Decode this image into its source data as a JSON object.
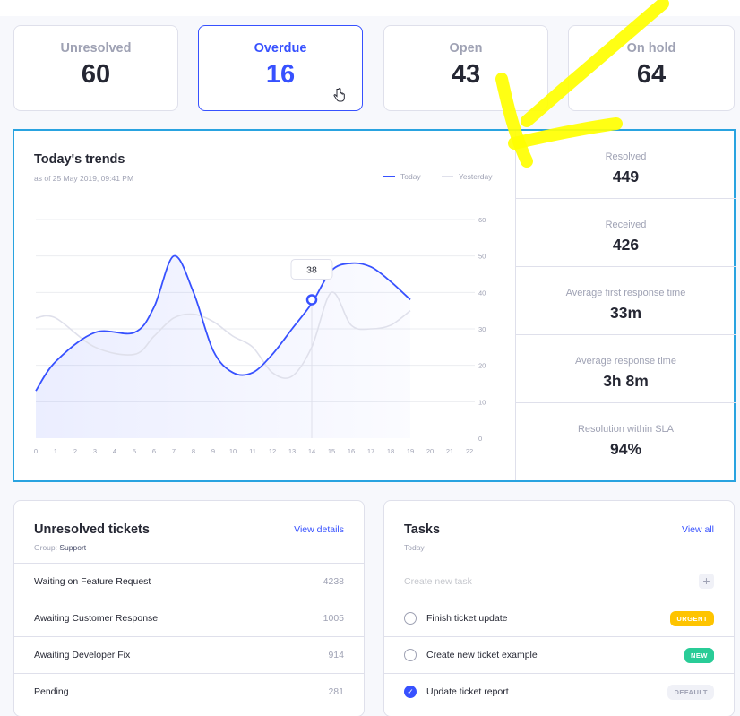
{
  "stats": [
    {
      "label": "Unresolved",
      "value": "60"
    },
    {
      "label": "Overdue",
      "value": "16"
    },
    {
      "label": "Open",
      "value": "43"
    },
    {
      "label": "On hold",
      "value": "64"
    }
  ],
  "trends": {
    "title": "Today's trends",
    "subtitle": "as of 25 May 2019, 09:41 PM",
    "legend_today": "Today",
    "legend_yesterday": "Yesterday",
    "tooltip_value": "38"
  },
  "right_stats": [
    {
      "label": "Resolved",
      "value": "449"
    },
    {
      "label": "Received",
      "value": "426"
    },
    {
      "label": "Average first response time",
      "value": "33m"
    },
    {
      "label": "Average response time",
      "value": "3h 8m"
    },
    {
      "label": "Resolution within SLA",
      "value": "94%"
    }
  ],
  "chart_data": {
    "type": "line",
    "xlabel": "",
    "ylabel": "",
    "x_ticks": [
      "0",
      "1",
      "2",
      "3",
      "4",
      "5",
      "6",
      "7",
      "8",
      "9",
      "10",
      "11",
      "12",
      "13",
      "14",
      "15",
      "16",
      "17",
      "18",
      "19",
      "20",
      "21",
      "22"
    ],
    "y_ticks": [
      "0",
      "10",
      "20",
      "30",
      "40",
      "50",
      "60"
    ],
    "xlim": [
      0,
      22
    ],
    "ylim": [
      0,
      60
    ],
    "legend_position": "top-right",
    "series": [
      {
        "name": "Today",
        "color": "#3751ff",
        "x": [
          0,
          1,
          3,
          5,
          6,
          7,
          8,
          9,
          10,
          11,
          12,
          13,
          14,
          15,
          16,
          17,
          18,
          19
        ],
        "y": [
          13,
          21,
          29,
          29,
          36,
          50,
          40,
          24,
          18,
          18,
          23,
          30,
          37,
          46,
          48,
          47,
          43,
          38
        ]
      },
      {
        "name": "Yesterday",
        "color": "#dfe0eb",
        "x": [
          0,
          1,
          3,
          5,
          6,
          7,
          8,
          9,
          10,
          11,
          12,
          13,
          14,
          15,
          16,
          17,
          18,
          19
        ],
        "y": [
          33,
          33,
          25,
          23,
          28,
          33,
          34,
          32,
          28,
          25,
          18,
          17,
          25,
          40,
          31,
          30,
          31,
          35
        ]
      }
    ]
  },
  "tickets": {
    "title": "Unresolved tickets",
    "link": "View details",
    "group_label": "Group:",
    "group_value": "Support",
    "rows": [
      {
        "label": "Waiting on Feature Request",
        "count": "4238"
      },
      {
        "label": "Awaiting Customer Response",
        "count": "1005"
      },
      {
        "label": "Awaiting Developer Fix",
        "count": "914"
      },
      {
        "label": "Pending",
        "count": "281"
      }
    ]
  },
  "tasks": {
    "title": "Tasks",
    "link": "View all",
    "subtitle": "Today",
    "new_placeholder": "Create new task",
    "add_symbol": "+",
    "items": [
      {
        "label": "Finish ticket update",
        "badge": "URGENT",
        "done": false
      },
      {
        "label": "Create new ticket example",
        "badge": "NEW",
        "done": false
      },
      {
        "label": "Update ticket report",
        "badge": "DEFAULT",
        "done": true
      }
    ]
  }
}
